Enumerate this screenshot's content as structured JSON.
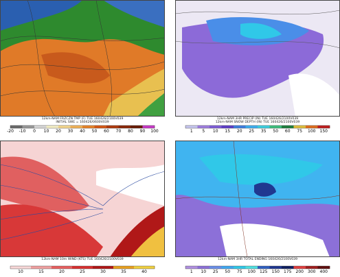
{
  "panels": [
    {
      "captions": [
        "12km-NAM FRZCZN TMP (F) TUE 160426/2100V039",
        "INITIAL SWE = 160426/0600V039"
      ],
      "colorbar": {
        "colors": [
          "#6b6b6b",
          "#9a9a9a",
          "#d8d8d8",
          "#f5f0c8",
          "#f5d890",
          "#f2b45a",
          "#e8862c",
          "#d65a18",
          "#b03c10",
          "#8c2a0c",
          "#6a1e08",
          "#c83cc8"
        ],
        "labels": [
          "-20",
          "-10",
          "0",
          "10",
          "20",
          "30",
          "40",
          "50",
          "60",
          "70",
          "80",
          "90",
          "100"
        ]
      }
    },
    {
      "captions": [
        "12km-NAM 3HR PRECIP (IN) TUE 160426/2100V039",
        "12km-NAM SNOW DEPTH (IN) TUE 160426/2100V039"
      ],
      "colorbar": {
        "colors": [
          "#c8c8f0",
          "#a080e0",
          "#8060d8",
          "#6040c8",
          "#4080e0",
          "#40b0f0",
          "#40d0e0",
          "#40c080",
          "#208040",
          "#e0c040",
          "#e07020",
          "#c02020"
        ],
        "labels": [
          "1",
          "5",
          "10",
          "15",
          "20",
          "25",
          "35",
          "50",
          "60",
          "75",
          "100",
          "150"
        ]
      }
    },
    {
      "captions": [
        "12km-NAM 10m WIND (KTS) TUE 160426/2100V039"
      ],
      "colorbar": {
        "colors": [
          "#f8d8d8",
          "#f0a0a0",
          "#e86060",
          "#d83030",
          "#b01818",
          "#e8a020",
          "#f0d040"
        ],
        "labels": [
          "10",
          "15",
          "20",
          "25",
          "30",
          "35",
          "40"
        ]
      }
    },
    {
      "captions": [
        "12km-NAM 3HR TOTAL ENDING 160426/2100V039"
      ],
      "colorbar": {
        "colors": [
          "#b090e0",
          "#8c70d8",
          "#6a8ee8",
          "#40a8f0",
          "#30c8e8",
          "#50e0e0",
          "#3060c0",
          "#203890",
          "#102060",
          "#e04040",
          "#a02020",
          "#601010"
        ],
        "labels": [
          "1",
          "10",
          "25",
          "50",
          "75",
          "100",
          "125",
          "150",
          "175",
          "200",
          "300",
          "400"
        ]
      }
    }
  ]
}
